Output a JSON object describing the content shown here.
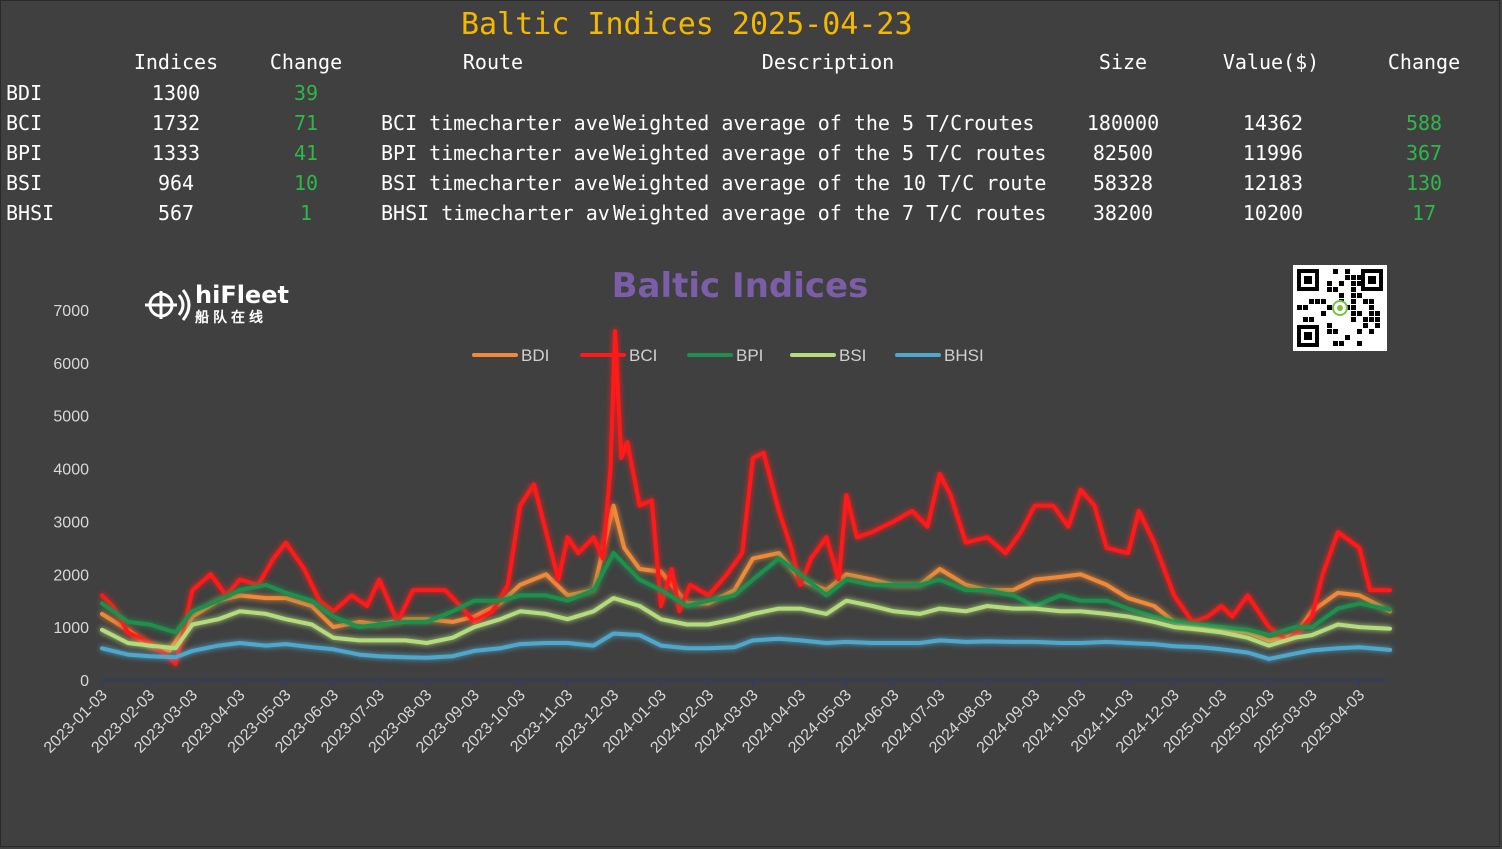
{
  "header": {
    "title": "Baltic Indices 2025-04-23"
  },
  "table": {
    "columns": [
      "Indices",
      "Change",
      "Route",
      "Description",
      "Size",
      "Value($)",
      "Change"
    ],
    "rows": [
      {
        "code": "BDI",
        "index": "1300",
        "change": "39",
        "route": "",
        "description": "",
        "size": "",
        "value": "",
        "value_change": ""
      },
      {
        "code": "BCI",
        "index": "1732",
        "change": "71",
        "route": "BCI timecharter ave",
        "description": "Weighted average of the 5 T/Croutes",
        "size": "180000",
        "value": "14362",
        "value_change": "588"
      },
      {
        "code": "BPI",
        "index": "1333",
        "change": "41",
        "route": "BPI timecharter ave",
        "description": "Weighted average of the 5 T/C routes",
        "size": "82500",
        "value": "11996",
        "value_change": "367"
      },
      {
        "code": "BSI",
        "index": "964",
        "change": "10",
        "route": "BSI timecharter ave",
        "description": "Weighted average of the 10 T/C route",
        "size": "58328",
        "value": "12183",
        "value_change": "130"
      },
      {
        "code": "BHSI",
        "index": "567",
        "change": "1",
        "route": "BHSI timecharter av",
        "description": "Weighted average of the 7 T/C routes",
        "size": "38200",
        "value": "10200",
        "value_change": "17"
      }
    ],
    "positive_color": "#2fb84a"
  },
  "logo": {
    "name": "hiFleet",
    "subtitle": "船队在线"
  },
  "chart_data": {
    "type": "line",
    "title": "Baltic Indices",
    "xlabel": "",
    "ylabel": "",
    "ylim": [
      0,
      7000
    ],
    "yticks": [
      0,
      1000,
      2000,
      3000,
      4000,
      5000,
      6000,
      7000
    ],
    "xticks": [
      "2023-01-03",
      "2023-02-03",
      "2023-03-03",
      "2023-04-03",
      "2023-05-03",
      "2023-06-03",
      "2023-07-03",
      "2023-08-03",
      "2023-09-03",
      "2023-10-03",
      "2023-11-03",
      "2023-12-03",
      "2024-01-03",
      "2024-02-03",
      "2024-03-03",
      "2024-04-03",
      "2024-05-03",
      "2024-06-03",
      "2024-07-03",
      "2024-08-03",
      "2024-09-03",
      "2024-10-03",
      "2024-11-03",
      "2024-12-03",
      "2025-01-03",
      "2025-02-03",
      "2025-03-03",
      "2025-04-03"
    ],
    "x_end": "2025-04-23",
    "legend_position": "top-center",
    "grid": false,
    "series": [
      {
        "name": "BDI",
        "color": "#ef8a3a",
        "dates": [
          "2023-01-03",
          "2023-01-20",
          "2023-02-03",
          "2023-02-16",
          "2023-03-03",
          "2023-03-20",
          "2023-04-03",
          "2023-04-20",
          "2023-05-03",
          "2023-05-20",
          "2023-06-03",
          "2023-06-20",
          "2023-07-03",
          "2023-07-20",
          "2023-08-03",
          "2023-08-20",
          "2023-09-03",
          "2023-09-20",
          "2023-10-03",
          "2023-10-20",
          "2023-11-03",
          "2023-11-20",
          "2023-12-03",
          "2023-12-10",
          "2023-12-20",
          "2024-01-03",
          "2024-01-20",
          "2024-02-03",
          "2024-02-20",
          "2024-03-03",
          "2024-03-20",
          "2024-04-03",
          "2024-04-20",
          "2024-05-03",
          "2024-05-20",
          "2024-06-03",
          "2024-06-20",
          "2024-07-03",
          "2024-07-20",
          "2024-08-03",
          "2024-08-20",
          "2024-09-03",
          "2024-09-20",
          "2024-10-03",
          "2024-10-20",
          "2024-11-03",
          "2024-11-20",
          "2024-12-03",
          "2024-12-20",
          "2025-01-03",
          "2025-01-20",
          "2025-02-03",
          "2025-02-20",
          "2025-03-03",
          "2025-03-20",
          "2025-04-03",
          "2025-04-23"
        ],
        "values": [
          1250,
          950,
          650,
          550,
          1200,
          1500,
          1600,
          1550,
          1550,
          1400,
          1000,
          1100,
          1050,
          1150,
          1150,
          1100,
          1200,
          1450,
          1800,
          2000,
          1600,
          1700,
          3300,
          2500,
          2100,
          2050,
          1450,
          1450,
          1700,
          2300,
          2400,
          1900,
          1700,
          2000,
          1900,
          1800,
          1800,
          2100,
          1800,
          1700,
          1700,
          1900,
          1950,
          2000,
          1800,
          1550,
          1400,
          1100,
          1000,
          950,
          900,
          750,
          850,
          1300,
          1650,
          1600,
          1300
        ]
      },
      {
        "name": "BCI",
        "color": "#ff1a1a",
        "dates": [
          "2023-01-03",
          "2023-01-10",
          "2023-01-20",
          "2023-02-03",
          "2023-02-15",
          "2023-02-20",
          "2023-02-25",
          "2023-03-03",
          "2023-03-15",
          "2023-03-25",
          "2023-04-03",
          "2023-04-15",
          "2023-04-25",
          "2023-05-03",
          "2023-05-15",
          "2023-05-25",
          "2023-06-03",
          "2023-06-15",
          "2023-06-25",
          "2023-07-03",
          "2023-07-15",
          "2023-07-25",
          "2023-08-03",
          "2023-08-15",
          "2023-08-25",
          "2023-09-03",
          "2023-09-15",
          "2023-09-25",
          "2023-10-03",
          "2023-10-12",
          "2023-10-20",
          "2023-10-28",
          "2023-11-03",
          "2023-11-10",
          "2023-11-20",
          "2023-11-26",
          "2023-12-01",
          "2023-12-04",
          "2023-12-08",
          "2023-12-12",
          "2023-12-20",
          "2023-12-28",
          "2024-01-03",
          "2024-01-10",
          "2024-01-15",
          "2024-01-22",
          "2024-02-03",
          "2024-02-15",
          "2024-02-25",
          "2024-03-03",
          "2024-03-10",
          "2024-03-20",
          "2024-03-28",
          "2024-04-03",
          "2024-04-10",
          "2024-04-20",
          "2024-04-28",
          "2024-05-03",
          "2024-05-10",
          "2024-05-20",
          "2024-06-03",
          "2024-06-15",
          "2024-06-25",
          "2024-07-03",
          "2024-07-10",
          "2024-07-20",
          "2024-08-03",
          "2024-08-15",
          "2024-08-25",
          "2024-09-03",
          "2024-09-15",
          "2024-09-25",
          "2024-10-03",
          "2024-10-12",
          "2024-10-20",
          "2024-11-03",
          "2024-11-10",
          "2024-11-20",
          "2024-12-03",
          "2024-12-15",
          "2024-12-25",
          "2025-01-03",
          "2025-01-10",
          "2025-01-20",
          "2025-02-03",
          "2025-02-15",
          "2025-02-25",
          "2025-03-03",
          "2025-03-10",
          "2025-03-20",
          "2025-04-03",
          "2025-04-10",
          "2025-04-23"
        ],
        "values": [
          1600,
          1400,
          900,
          700,
          450,
          300,
          900,
          1700,
          2000,
          1600,
          1900,
          1800,
          2300,
          2600,
          2100,
          1500,
          1300,
          1600,
          1400,
          1900,
          1100,
          1700,
          1700,
          1700,
          1400,
          1100,
          1300,
          1800,
          3300,
          3700,
          2800,
          1900,
          2700,
          2400,
          2700,
          2300,
          4000,
          6600,
          4200,
          4500,
          3300,
          3400,
          1400,
          2100,
          1300,
          1800,
          1600,
          2000,
          2400,
          4200,
          4300,
          3200,
          2500,
          1800,
          2300,
          2700,
          1900,
          3500,
          2700,
          2800,
          3000,
          3200,
          2900,
          3900,
          3500,
          2600,
          2700,
          2400,
          2800,
          3300,
          3300,
          2900,
          3600,
          3300,
          2500,
          2400,
          3200,
          2600,
          1600,
          1100,
          1200,
          1400,
          1200,
          1600,
          1000,
          750,
          1000,
          1200,
          2000,
          2800,
          2500,
          1700,
          1700
        ]
      },
      {
        "name": "BPI",
        "color": "#1f8f4e",
        "dates": [
          "2023-01-03",
          "2023-01-20",
          "2023-02-03",
          "2023-02-20",
          "2023-03-03",
          "2023-03-20",
          "2023-04-03",
          "2023-04-20",
          "2023-05-03",
          "2023-05-20",
          "2023-06-03",
          "2023-06-20",
          "2023-07-03",
          "2023-07-20",
          "2023-08-03",
          "2023-08-20",
          "2023-09-03",
          "2023-09-20",
          "2023-10-03",
          "2023-10-20",
          "2023-11-03",
          "2023-11-20",
          "2023-12-03",
          "2023-12-20",
          "2024-01-03",
          "2024-01-20",
          "2024-02-03",
          "2024-02-20",
          "2024-03-03",
          "2024-03-20",
          "2024-04-03",
          "2024-04-20",
          "2024-05-03",
          "2024-05-20",
          "2024-06-03",
          "2024-06-20",
          "2024-07-03",
          "2024-07-20",
          "2024-08-03",
          "2024-08-20",
          "2024-09-03",
          "2024-09-20",
          "2024-10-03",
          "2024-10-20",
          "2024-11-03",
          "2024-11-20",
          "2024-12-03",
          "2024-12-20",
          "2025-01-03",
          "2025-01-20",
          "2025-02-03",
          "2025-02-20",
          "2025-03-03",
          "2025-03-20",
          "2025-04-03",
          "2025-04-23"
        ],
        "values": [
          1450,
          1100,
          1050,
          900,
          1300,
          1500,
          1700,
          1800,
          1650,
          1500,
          1200,
          1000,
          1050,
          1100,
          1100,
          1300,
          1500,
          1500,
          1600,
          1600,
          1500,
          1700,
          2400,
          1900,
          1700,
          1400,
          1500,
          1600,
          1900,
          2300,
          2000,
          1600,
          1900,
          1800,
          1800,
          1800,
          1900,
          1700,
          1700,
          1600,
          1400,
          1600,
          1500,
          1500,
          1350,
          1200,
          1100,
          1050,
          1000,
          950,
          850,
          1000,
          1000,
          1350,
          1450,
          1330
        ]
      },
      {
        "name": "BSI",
        "color": "#b5dc7c",
        "dates": [
          "2023-01-03",
          "2023-01-20",
          "2023-02-03",
          "2023-02-20",
          "2023-03-03",
          "2023-03-20",
          "2023-04-03",
          "2023-04-20",
          "2023-05-03",
          "2023-05-20",
          "2023-06-03",
          "2023-06-20",
          "2023-07-03",
          "2023-07-20",
          "2023-08-03",
          "2023-08-20",
          "2023-09-03",
          "2023-09-20",
          "2023-10-03",
          "2023-10-20",
          "2023-11-03",
          "2023-11-20",
          "2023-12-03",
          "2023-12-20",
          "2024-01-03",
          "2024-01-20",
          "2024-02-03",
          "2024-02-20",
          "2024-03-03",
          "2024-03-20",
          "2024-04-03",
          "2024-04-20",
          "2024-05-03",
          "2024-05-20",
          "2024-06-03",
          "2024-06-20",
          "2024-07-03",
          "2024-07-20",
          "2024-08-03",
          "2024-08-20",
          "2024-09-03",
          "2024-09-20",
          "2024-10-03",
          "2024-10-20",
          "2024-11-03",
          "2024-11-20",
          "2024-12-03",
          "2024-12-20",
          "2025-01-03",
          "2025-01-20",
          "2025-02-03",
          "2025-02-20",
          "2025-03-03",
          "2025-03-20",
          "2025-04-03",
          "2025-04-23"
        ],
        "values": [
          950,
          700,
          650,
          600,
          1050,
          1150,
          1300,
          1250,
          1150,
          1050,
          800,
          750,
          750,
          750,
          700,
          800,
          1000,
          1150,
          1300,
          1250,
          1150,
          1300,
          1550,
          1400,
          1150,
          1050,
          1050,
          1150,
          1250,
          1350,
          1350,
          1250,
          1500,
          1400,
          1300,
          1250,
          1350,
          1300,
          1400,
          1350,
          1350,
          1300,
          1300,
          1250,
          1200,
          1100,
          1000,
          950,
          900,
          800,
          650,
          800,
          850,
          1050,
          1000,
          970
        ]
      },
      {
        "name": "BHSI",
        "color": "#4fa8cc",
        "dates": [
          "2023-01-03",
          "2023-01-20",
          "2023-02-03",
          "2023-02-20",
          "2023-03-03",
          "2023-03-20",
          "2023-04-03",
          "2023-04-20",
          "2023-05-03",
          "2023-05-20",
          "2023-06-03",
          "2023-06-20",
          "2023-07-03",
          "2023-07-20",
          "2023-08-03",
          "2023-08-20",
          "2023-09-03",
          "2023-09-20",
          "2023-10-03",
          "2023-10-20",
          "2023-11-03",
          "2023-11-20",
          "2023-12-03",
          "2023-12-20",
          "2024-01-03",
          "2024-01-20",
          "2024-02-03",
          "2024-02-20",
          "2024-03-03",
          "2024-03-20",
          "2024-04-03",
          "2024-04-20",
          "2024-05-03",
          "2024-05-20",
          "2024-06-03",
          "2024-06-20",
          "2024-07-03",
          "2024-07-20",
          "2024-08-03",
          "2024-08-20",
          "2024-09-03",
          "2024-09-20",
          "2024-10-03",
          "2024-10-20",
          "2024-11-03",
          "2024-11-20",
          "2024-12-03",
          "2024-12-20",
          "2025-01-03",
          "2025-01-20",
          "2025-02-03",
          "2025-02-20",
          "2025-03-03",
          "2025-03-20",
          "2025-04-03",
          "2025-04-23"
        ],
        "values": [
          600,
          480,
          450,
          430,
          550,
          650,
          700,
          650,
          680,
          620,
          580,
          480,
          450,
          430,
          420,
          450,
          550,
          600,
          680,
          700,
          700,
          650,
          880,
          850,
          650,
          600,
          600,
          620,
          750,
          780,
          750,
          700,
          720,
          700,
          700,
          700,
          750,
          720,
          730,
          720,
          720,
          700,
          700,
          720,
          700,
          680,
          640,
          620,
          580,
          520,
          400,
          500,
          560,
          600,
          620,
          570
        ]
      }
    ]
  }
}
